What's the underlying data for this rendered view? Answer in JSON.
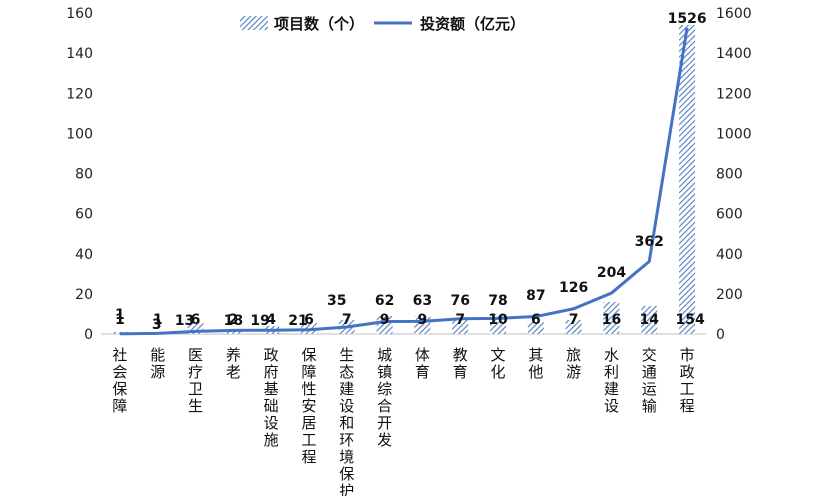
{
  "chart_data": {
    "type": "bar",
    "categories": [
      "社会保障",
      "能源",
      "医疗卫生",
      "养老",
      "政府基础设施",
      "保障性安居工程",
      "生态建设和环境保护",
      "城镇综合开发",
      "体育",
      "教育",
      "文化",
      "其他",
      "旅游",
      "水利建设",
      "交通运输",
      "市政工程"
    ],
    "series": [
      {
        "name": "项目数（个）",
        "type": "bar",
        "axis": "left",
        "values": [
          1,
          1,
          6,
          2,
          4,
          6,
          7,
          9,
          9,
          7,
          10,
          6,
          7,
          16,
          14,
          154
        ],
        "labels": [
          "1",
          "1",
          "6",
          "2",
          "4",
          "6",
          "7",
          "9",
          "9",
          "7",
          "10",
          "6",
          "7",
          "16",
          "14",
          "154"
        ]
      },
      {
        "name": "投资额（亿元）",
        "type": "line",
        "axis": "right",
        "values": [
          1,
          3,
          13,
          18,
          19,
          21,
          35,
          62,
          63,
          76,
          78,
          87,
          126,
          204,
          362,
          1526
        ],
        "labels": [
          "1",
          "3",
          "13",
          "18",
          "19",
          "21",
          "35",
          "62",
          "63",
          "76",
          "78",
          "87",
          "126",
          "204",
          "362",
          "1526"
        ]
      }
    ],
    "y_left": {
      "range": [
        0,
        160
      ],
      "ticks": [
        "0",
        "20",
        "40",
        "60",
        "80",
        "100",
        "120",
        "140",
        "160"
      ]
    },
    "y_right": {
      "range": [
        0,
        1600
      ],
      "ticks": [
        "0",
        "200",
        "400",
        "600",
        "800",
        "1000",
        "1200",
        "1400",
        "1600"
      ]
    },
    "legend": "top",
    "grid": false,
    "colors": {
      "bar": "#4f7fbf",
      "line": "#4472c4"
    }
  }
}
